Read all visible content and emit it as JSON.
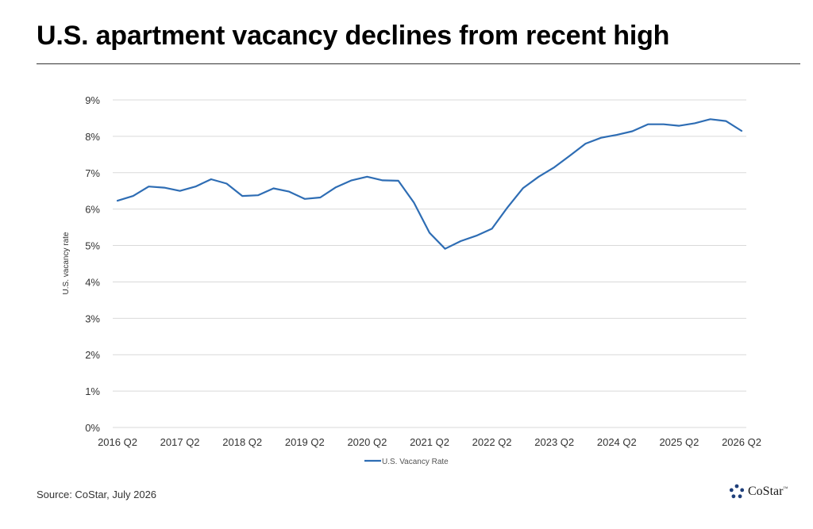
{
  "title": "U.S. apartment vacancy declines from recent high",
  "source": "Source: CoStar, July 2026",
  "logo": {
    "text": "CoStar",
    "tm": "™",
    "icon": "costar-star-icon",
    "color": "#1f3f7a"
  },
  "colors": {
    "line": "#2e6db4",
    "grid": "#d9d9d9",
    "text": "#333333"
  },
  "chart_data": {
    "type": "line",
    "title": "",
    "xlabel": "",
    "ylabel": "U.S. vacancy rate",
    "ylim": [
      0,
      9
    ],
    "yticks": [
      "0%",
      "1%",
      "2%",
      "3%",
      "4%",
      "5%",
      "6%",
      "7%",
      "8%",
      "9%"
    ],
    "xtick_labels": [
      "2016 Q2",
      "2017 Q2",
      "2018 Q2",
      "2019 Q2",
      "2020 Q2",
      "2021 Q2",
      "2022 Q2",
      "2023 Q2",
      "2024 Q2",
      "2025 Q2",
      "2026 Q2"
    ],
    "grid": true,
    "legend_position": "bottom",
    "x": [
      "2016 Q2",
      "2016 Q3",
      "2016 Q4",
      "2017 Q1",
      "2017 Q2",
      "2017 Q3",
      "2017 Q4",
      "2018 Q1",
      "2018 Q2",
      "2018 Q3",
      "2018 Q4",
      "2019 Q1",
      "2019 Q2",
      "2019 Q3",
      "2019 Q4",
      "2020 Q1",
      "2020 Q2",
      "2020 Q3",
      "2020 Q4",
      "2021 Q1",
      "2021 Q2",
      "2021 Q3",
      "2021 Q4",
      "2022 Q1",
      "2022 Q2",
      "2022 Q3",
      "2022 Q4",
      "2023 Q1",
      "2023 Q2",
      "2023 Q3",
      "2023 Q4",
      "2024 Q1",
      "2024 Q2",
      "2024 Q3",
      "2024 Q4",
      "2025 Q1",
      "2025 Q2",
      "2025 Q3",
      "2025 Q4",
      "2026 Q1",
      "2026 Q2"
    ],
    "series": [
      {
        "name": "U.S. Vacancy Rate",
        "values": [
          6.23,
          6.36,
          6.62,
          6.59,
          6.5,
          6.62,
          6.82,
          6.7,
          6.36,
          6.38,
          6.57,
          6.48,
          6.28,
          6.32,
          6.6,
          6.79,
          6.89,
          6.79,
          6.78,
          6.18,
          5.35,
          4.91,
          5.12,
          5.27,
          5.46,
          6.05,
          6.58,
          6.89,
          7.15,
          7.47,
          7.8,
          7.96,
          8.04,
          8.14,
          8.33,
          8.33,
          8.29,
          8.36,
          8.47,
          8.42,
          8.15
        ]
      }
    ]
  }
}
